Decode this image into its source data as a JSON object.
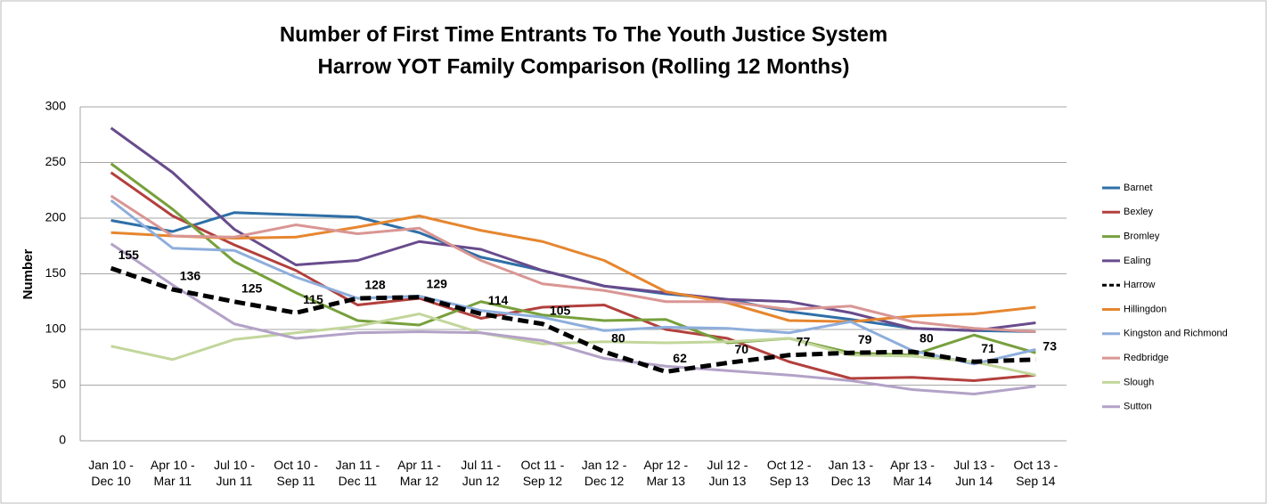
{
  "chart_data": {
    "type": "line",
    "title": "Number of First Time Entrants To The Youth Justice System",
    "subtitle": "Harrow YOT Family Comparison  (Rolling 12 Months)",
    "y_label": "Number",
    "categories": [
      "Jan 10 - Dec 10",
      "Apr 10 - Mar 11",
      "Jul 10 - Jun 11",
      "Oct 10 - Sep 11",
      "Jan 11 - Dec 11",
      "Apr 11 - Mar 12",
      "Jul 11 - Jun 12",
      "Oct 11 - Sep 12",
      "Jan 12 - Dec 12",
      "Apr 12 - Mar 13",
      "Jul 12 - Jun 13",
      "Oct 12 - Sep 13",
      "Jan 13 - Dec 13",
      "Apr 13 - Mar 14",
      "Jul 13 - Jun 14",
      "Oct 13 - Sep 14"
    ],
    "ylim": [
      0,
      300
    ],
    "yticks": [
      0,
      50,
      100,
      150,
      200,
      250,
      300
    ],
    "grid": true,
    "series": [
      {
        "name": "Barnet",
        "color": "#2e6fa7",
        "values": [
          198,
          188,
          205,
          203,
          201,
          187,
          165,
          153,
          139,
          132,
          127,
          116,
          109,
          101,
          99,
          98
        ]
      },
      {
        "name": "Bexley",
        "color": "#b2403d",
        "values": [
          241,
          202,
          176,
          153,
          122,
          128,
          110,
          120,
          122,
          100,
          92,
          71,
          56,
          57,
          54,
          59
        ]
      },
      {
        "name": "Bromley",
        "color": "#77a03c",
        "values": [
          249,
          208,
          161,
          133,
          108,
          104,
          125,
          113,
          108,
          109,
          88,
          92,
          79,
          77,
          95,
          79
        ]
      },
      {
        "name": "Ealing",
        "color": "#684b8c",
        "values": [
          281,
          241,
          190,
          158,
          162,
          179,
          172,
          153,
          139,
          133,
          127,
          125,
          115,
          101,
          99,
          106
        ]
      },
      {
        "name": "Harrow",
        "color": "#000000",
        "dash": true,
        "values": [
          155,
          136,
          125,
          115,
          128,
          129,
          114,
          105,
          80,
          62,
          70,
          77,
          79,
          80,
          71,
          73
        ]
      },
      {
        "name": "Hillingdon",
        "color": "#e6862f",
        "values": [
          187,
          184,
          182,
          183,
          192,
          202,
          189,
          179,
          162,
          134,
          124,
          108,
          107,
          112,
          114,
          120
        ]
      },
      {
        "name": "Kingston and Richmond",
        "color": "#8eaedc",
        "values": [
          216,
          173,
          171,
          147,
          128,
          130,
          117,
          111,
          99,
          102,
          101,
          97,
          107,
          81,
          69,
          82
        ]
      },
      {
        "name": "Redbridge",
        "color": "#d99694",
        "values": [
          220,
          184,
          183,
          194,
          186,
          191,
          162,
          141,
          135,
          125,
          125,
          118,
          121,
          107,
          101,
          98
        ]
      },
      {
        "name": "Slough",
        "color": "#c2d69b",
        "values": [
          85,
          73,
          91,
          97,
          103,
          114,
          97,
          87,
          89,
          88,
          89,
          92,
          77,
          76,
          71,
          59
        ]
      },
      {
        "name": "Sutton",
        "color": "#b3a2c7",
        "values": [
          177,
          140,
          105,
          92,
          97,
          98,
          97,
          90,
          74,
          67,
          63,
          59,
          54,
          46,
          42,
          49
        ]
      }
    ]
  }
}
